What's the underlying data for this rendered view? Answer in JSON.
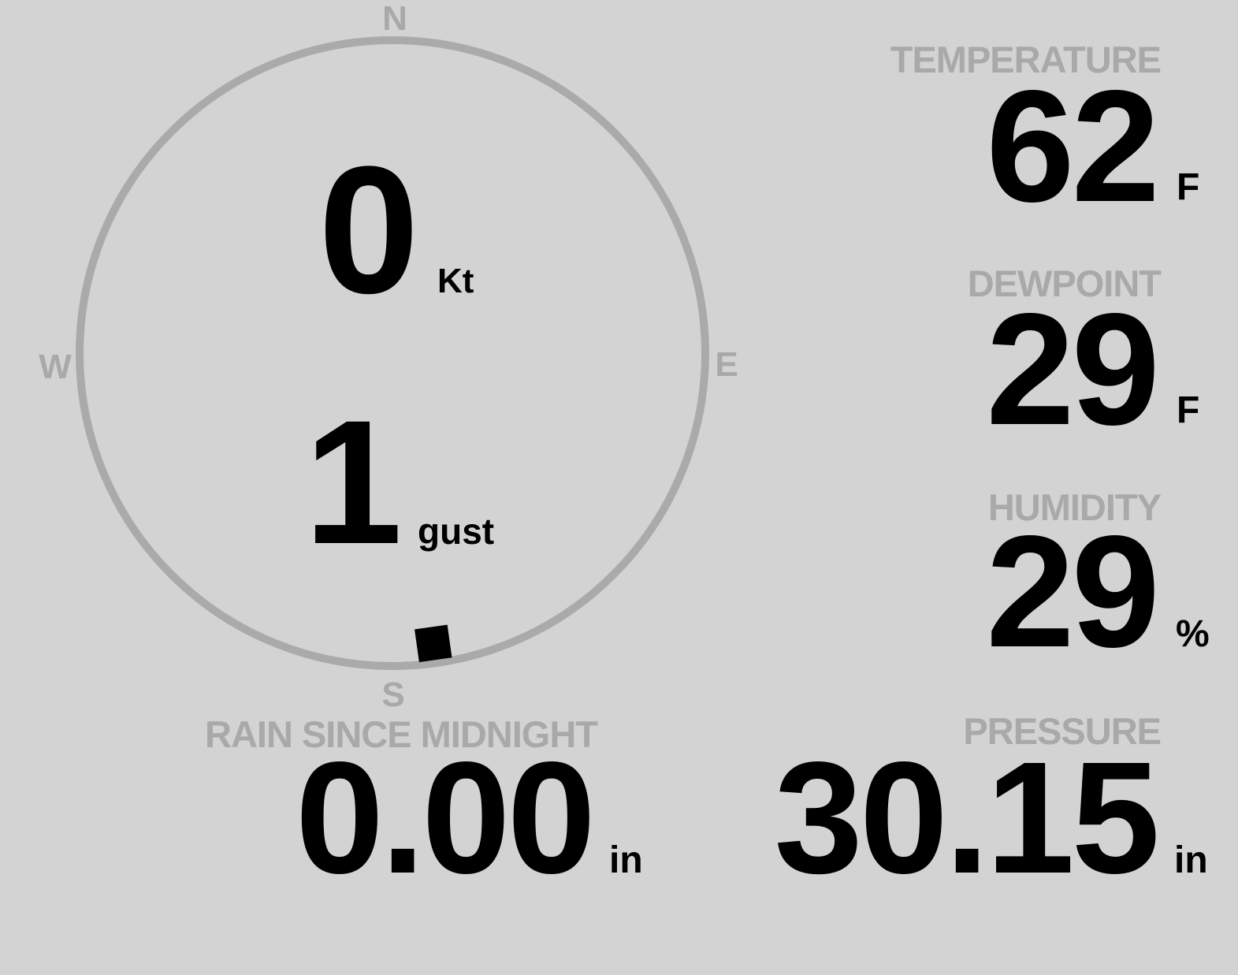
{
  "compass": {
    "north": "N",
    "south": "S",
    "east": "E",
    "west": "W",
    "wind_direction_deg": 172,
    "ring_color": "#aaaaaa",
    "marker_color": "#000000"
  },
  "wind": {
    "speed": "0",
    "speed_unit": "Kt",
    "gust": "1",
    "gust_unit": "gust"
  },
  "temperature": {
    "label": "TEMPERATURE",
    "value": "62",
    "unit": "F"
  },
  "dewpoint": {
    "label": "DEWPOINT",
    "value": "29",
    "unit": "F"
  },
  "humidity": {
    "label": "HUMIDITY",
    "value": "29",
    "unit": "%"
  },
  "pressure": {
    "label": "PRESSURE",
    "value": "30.15",
    "unit": "in"
  },
  "rain": {
    "label": "RAIN SINCE MIDNIGHT",
    "value": "0.00",
    "unit": "in"
  },
  "colors": {
    "background": "#d3d3d3",
    "label": "#a9a9a9",
    "value": "#000000"
  }
}
